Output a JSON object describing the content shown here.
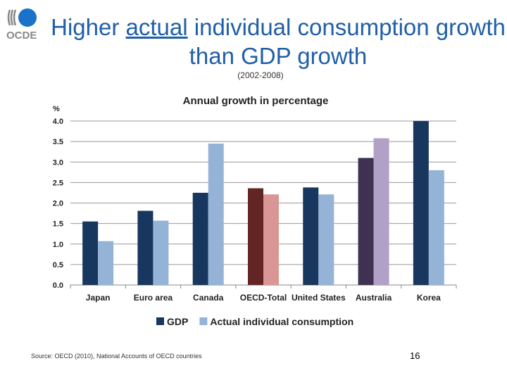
{
  "slide": {
    "title_pre": "Higher ",
    "title_underlined": "actual",
    "title_post": " individual consumption growth than GDP growth",
    "subtitle": "(2002-2008)",
    "source": "Source: OECD (2010), National Accounts of OECD countries",
    "page_number": "16",
    "logo_text": "OCDE"
  },
  "chart_data": {
    "type": "bar",
    "title": "Annual growth in percentage",
    "ylabel": "%",
    "ylim": [
      0,
      4
    ],
    "yticks": [
      "0.0",
      "0.5",
      "1.0",
      "1.5",
      "2.0",
      "2.5",
      "3.0",
      "3.5",
      "4.0"
    ],
    "grid": true,
    "legend_position": "bottom",
    "categories": [
      "Japan",
      "Euro area",
      "Canada",
      "OECD-Total",
      "United States",
      "Australia",
      "Korea"
    ],
    "series": [
      {
        "name": "GDP",
        "values": [
          1.55,
          1.81,
          2.25,
          2.36,
          2.38,
          3.1,
          4.0
        ],
        "color": "#17375e",
        "colors": [
          "#17375e",
          "#17375e",
          "#17375e",
          "#632523",
          "#17375e",
          "#3f3151",
          "#17375e"
        ]
      },
      {
        "name": "Actual individual consumption",
        "values": [
          1.07,
          1.57,
          3.45,
          2.21,
          2.21,
          3.58,
          2.8
        ],
        "color": "#95b3d7",
        "colors": [
          "#95b3d7",
          "#95b3d7",
          "#95b3d7",
          "#d99694",
          "#95b3d7",
          "#b2a1c7",
          "#95b3d7"
        ]
      }
    ]
  }
}
